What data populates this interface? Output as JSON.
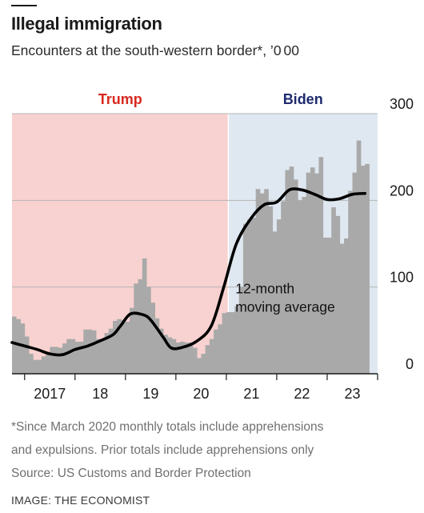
{
  "header": {
    "title": "Illegal immigration",
    "subtitle": "Encounters at the south-western border*, ’0 00"
  },
  "footer": {
    "note_line1": "*Since March 2020 monthly totals include apprehensions",
    "note_line2": "and expulsions. Prior totals include apprehensions only",
    "source": "Source: US Customs and Border Protection",
    "credit": "IMAGE: THE ECONOMIST"
  },
  "chart_data": {
    "type": "bar",
    "title": "Illegal immigration",
    "subtitle": "Encounters at the south-western border*, ’000",
    "ylim": [
      0,
      300
    ],
    "yticks": [
      0,
      100,
      200,
      300
    ],
    "xlim": [
      2016.75,
      2024.0
    ],
    "xtick_labels": [
      {
        "x": 2017.0,
        "label": "2017"
      },
      {
        "x": 2018.0,
        "label": "18"
      },
      {
        "x": 2019.0,
        "label": "19"
      },
      {
        "x": 2020.0,
        "label": "20"
      },
      {
        "x": 2021.0,
        "label": "21"
      },
      {
        "x": 2022.0,
        "label": "22"
      },
      {
        "x": 2023.0,
        "label": "23"
      }
    ],
    "grid": "horizontal",
    "periods": [
      {
        "name": "Trump",
        "start": 2016.75,
        "end": 2021.04,
        "color": "#f8d2d0",
        "label_color": "#d9281f"
      },
      {
        "name": "Biden",
        "start": 2021.04,
        "end": 2024.0,
        "color": "#dfe8f1",
        "label_color": "#1e2a6e"
      }
    ],
    "series": [
      {
        "name": "Monthly encounters",
        "color": "#a9a9a9",
        "start": "2016-10",
        "values": [
          66,
          63,
          58,
          43,
          23,
          16,
          16,
          20,
          25,
          31,
          31,
          30,
          35,
          40,
          40,
          37,
          37,
          51,
          51,
          50,
          40,
          39,
          47,
          52,
          61,
          63,
          62,
          60,
          76,
          104,
          109,
          133,
          100,
          82,
          64,
          52,
          45,
          42,
          40,
          36,
          37,
          36,
          36,
          30,
          18,
          23,
          33,
          40,
          51,
          57,
          70,
          71,
          71,
          78,
          100,
          173,
          178,
          180,
          213,
          208,
          213,
          193,
          164,
          178,
          199,
          235,
          239,
          224,
          200,
          204,
          232,
          238,
          231,
          250,
          157,
          157,
          192,
          182,
          150,
          156,
          211,
          232,
          269,
          240,
          242
        ]
      },
      {
        "name": "12-month moving average",
        "color": "#000000",
        "x": [
          2016.75,
          2017.0,
          2017.25,
          2017.5,
          2017.75,
          2018.0,
          2018.25,
          2018.5,
          2018.75,
          2018.9,
          2019.1,
          2019.35,
          2019.5,
          2019.75,
          2019.9,
          2020.1,
          2020.4,
          2020.7,
          2020.95,
          2021.2,
          2021.5,
          2021.75,
          2022.0,
          2022.25,
          2022.5,
          2022.75,
          2023.0,
          2023.25,
          2023.5,
          2023.75
        ],
        "y": [
          36,
          32,
          28,
          23,
          22,
          28,
          32,
          38,
          45,
          55,
          69,
          68,
          62,
          42,
          30,
          30,
          37,
          55,
          100,
          150,
          180,
          195,
          198,
          212,
          212,
          207,
          201,
          202,
          207,
          208
        ]
      }
    ],
    "annotations": [
      {
        "text_line1": "12-month",
        "text_line2": "moving average",
        "x": 2021.18,
        "y": 93
      }
    ]
  }
}
